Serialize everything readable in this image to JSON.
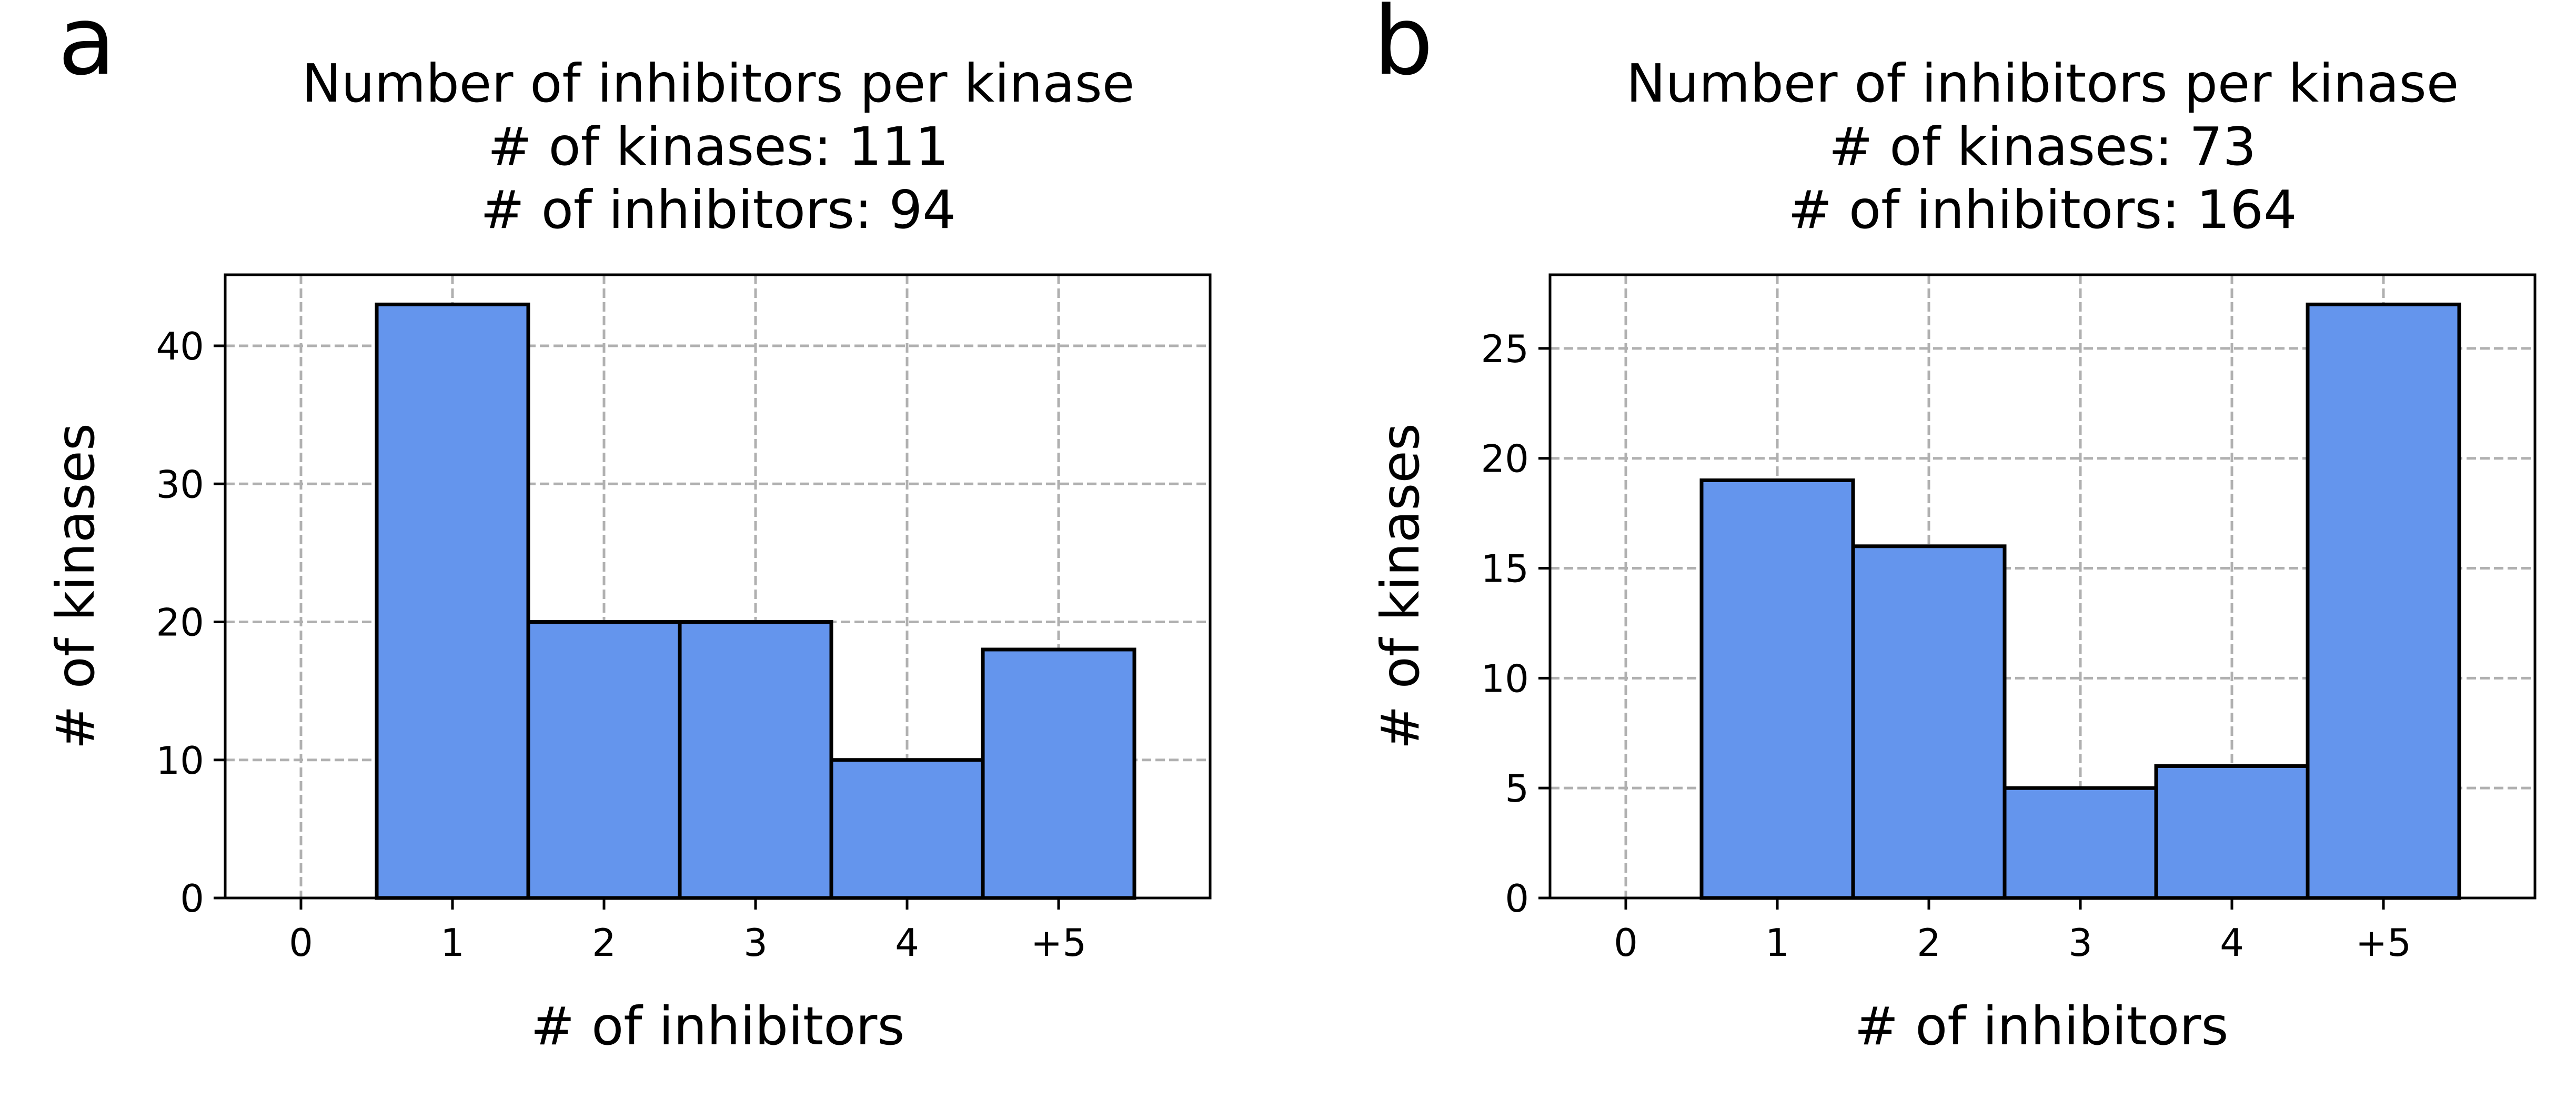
{
  "bar_color": "#6495ed",
  "edge_color": "#000000",
  "grid_color": "#b0b0b0",
  "chart_data": [
    {
      "panel": "a",
      "type": "bar",
      "title": "Number of inhibitors per kinase",
      "subtitle_lines": [
        "# of kinases: 111",
        "# of inhibitors: 94"
      ],
      "categories": [
        "0",
        "1",
        "2",
        "3",
        "4",
        "+5"
      ],
      "values": [
        0,
        43,
        20,
        20,
        10,
        18
      ],
      "xlabel": "# of inhibitors",
      "ylabel": "# of kinases",
      "yticks": [
        0,
        10,
        20,
        30,
        40
      ],
      "ylim": [
        0,
        45.15
      ],
      "grid": true,
      "legend": "none"
    },
    {
      "panel": "b",
      "type": "bar",
      "title": "Number of inhibitors per kinase",
      "subtitle_lines": [
        "# of kinases: 73",
        "# of inhibitors: 164"
      ],
      "categories": [
        "0",
        "1",
        "2",
        "3",
        "4",
        "+5"
      ],
      "values": [
        0,
        19,
        16,
        5,
        6,
        27
      ],
      "xlabel": "# of inhibitors",
      "ylabel": "# of kinases",
      "yticks": [
        0,
        5,
        10,
        15,
        20,
        25
      ],
      "ylim": [
        0,
        28.35
      ],
      "grid": true,
      "legend": "none"
    }
  ]
}
